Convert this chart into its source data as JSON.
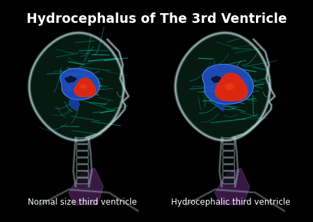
{
  "background_color": "#000000",
  "title": "Hydrocephalus of The 3rd Ventricle",
  "title_color": "#ffffff",
  "title_fontsize": 13.5,
  "title_fontweight": "bold",
  "left_label": "Normal size third ventricle",
  "right_label": "Hydrocephalic third ventricle",
  "label_color": "#ffffff",
  "label_fontsize": 8.5,
  "skull_edge_color": "#b8d8d8",
  "skull_fill_color": "#101818",
  "skull_alpha": 0.85,
  "brain_bg_color": "#071a15",
  "fiber_color": "#00c8aa",
  "fiber_alpha": 0.55,
  "vent_blue_color": "#2255cc",
  "vent_blue_alpha": 0.9,
  "vent_red_color": "#cc2200",
  "vent_red_alpha": 0.95,
  "neck_muscle_color": "#8844aa",
  "spine_color": "#c0d8d8",
  "face_color": "#9ababa"
}
